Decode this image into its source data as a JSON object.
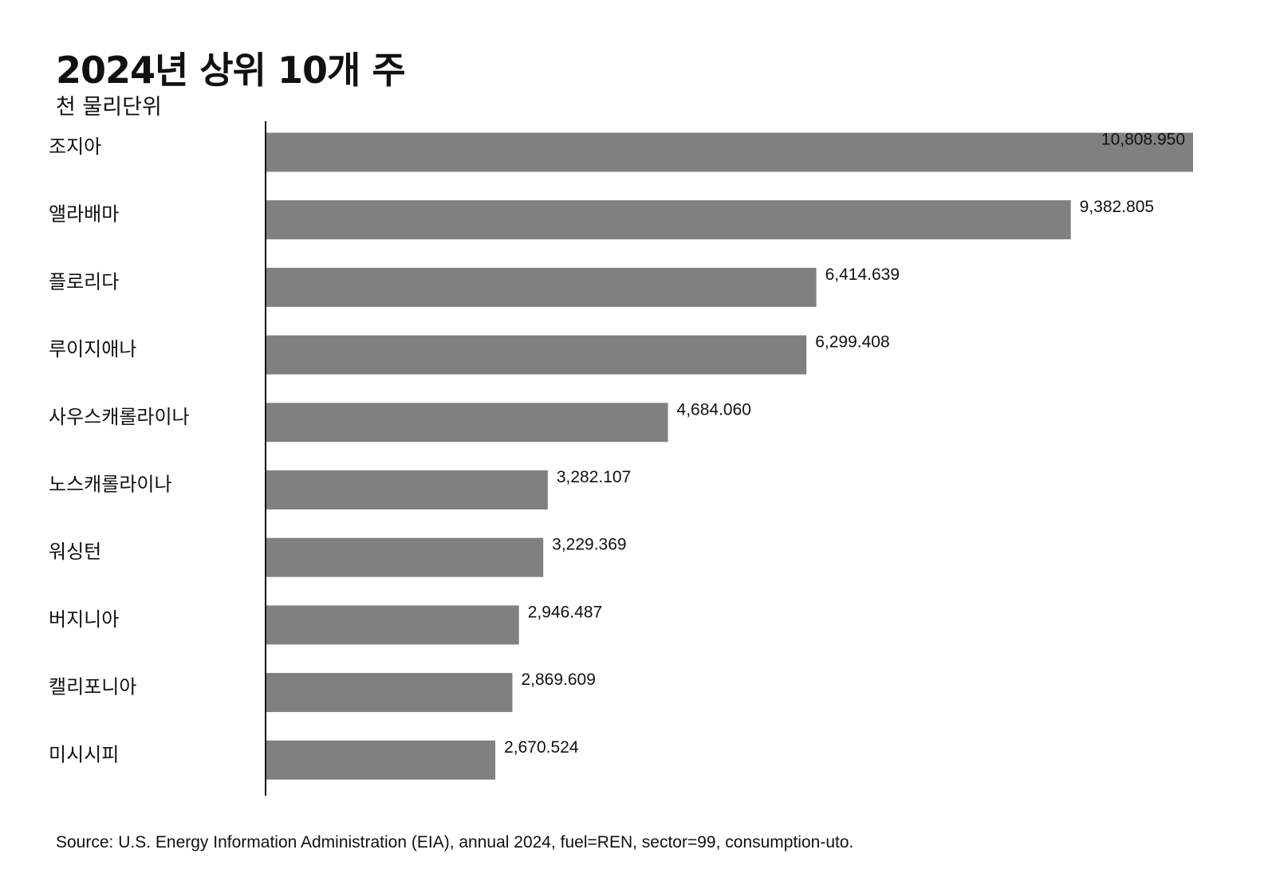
{
  "chart_data": {
    "type": "bar",
    "orientation": "horizontal",
    "title": "2024년 상위 10개 주",
    "subtitle": "천 물리단위",
    "categories": [
      "조지아",
      "앨라배마",
      "플로리다",
      "루이지애나",
      "사우스캐롤라이나",
      "노스캐롤라이나",
      "워싱턴",
      "버지니아",
      "캘리포니아",
      "미시시피"
    ],
    "values": [
      10808.95,
      9382.805,
      6414.639,
      6299.408,
      4684.06,
      3282.107,
      3229.369,
      2946.487,
      2869.609,
      2670.524
    ],
    "value_labels": [
      "10,808.950",
      "9,382.805",
      "6,414.639",
      "6,299.408",
      "4,684.060",
      "3,282.107",
      "3,229.369",
      "2,946.487",
      "2,869.609",
      "2,670.524"
    ],
    "xlim": [
      0,
      10808.95
    ],
    "grid": false,
    "legend": "none",
    "bar_color": "#808080",
    "axis_color": "#111111",
    "source": "Source: U.S. Energy Information Administration (EIA), annual 2024, fuel=REN, sector=99, consumption-uto."
  }
}
